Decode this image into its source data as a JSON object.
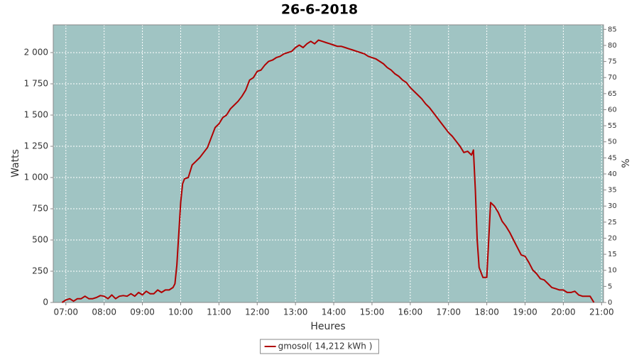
{
  "chart_data": {
    "type": "line",
    "title": "26-6-2018",
    "xlabel": "Heures",
    "ylabel": "Watts",
    "y2label": "%",
    "xlim": [
      6.67,
      21.05
    ],
    "xticks": [
      {
        "value": 7,
        "label": "07:00"
      },
      {
        "value": 8,
        "label": "08:00"
      },
      {
        "value": 9,
        "label": "09:00"
      },
      {
        "value": 10,
        "label": "10:00"
      },
      {
        "value": 11,
        "label": "11:00"
      },
      {
        "value": 12,
        "label": "12:00"
      },
      {
        "value": 13,
        "label": "13:00"
      },
      {
        "value": 14,
        "label": "14:00"
      },
      {
        "value": 15,
        "label": "15:00"
      },
      {
        "value": 16,
        "label": "16:00"
      },
      {
        "value": 17,
        "label": "17:00"
      },
      {
        "value": 18,
        "label": "18:00"
      },
      {
        "value": 19,
        "label": "19:00"
      },
      {
        "value": 20,
        "label": "20:00"
      },
      {
        "value": 21,
        "label": "21:00"
      }
    ],
    "ylim": [
      0,
      2222
    ],
    "yticks": [
      0,
      250,
      500,
      750,
      {
        "value": 1000,
        "label": "1 000"
      },
      {
        "value": 1250,
        "label": "1 250"
      },
      {
        "value": 1500,
        "label": "1 500"
      },
      {
        "value": 1750,
        "label": "1 750"
      },
      {
        "value": 2000,
        "label": "2 000"
      }
    ],
    "y2lim": [
      0,
      86.4
    ],
    "y2ticks": [
      0,
      5,
      10,
      15,
      20,
      25,
      30,
      35,
      40,
      45,
      50,
      55,
      60,
      65,
      70,
      75,
      80,
      85
    ],
    "grid": true,
    "background": "#a0c4c3",
    "legend": "bottom",
    "x": [
      6.9,
      7.0,
      7.1,
      7.2,
      7.3,
      7.4,
      7.5,
      7.6,
      7.7,
      7.8,
      7.9,
      8.0,
      8.1,
      8.2,
      8.3,
      8.4,
      8.5,
      8.6,
      8.7,
      8.8,
      8.9,
      9.0,
      9.1,
      9.2,
      9.3,
      9.4,
      9.5,
      9.6,
      9.7,
      9.8,
      9.85,
      9.9,
      9.95,
      10.0,
      10.05,
      10.1,
      10.2,
      10.3,
      10.4,
      10.5,
      10.6,
      10.7,
      10.8,
      10.9,
      11.0,
      11.1,
      11.2,
      11.3,
      11.4,
      11.5,
      11.6,
      11.7,
      11.8,
      11.9,
      12.0,
      12.1,
      12.2,
      12.3,
      12.4,
      12.5,
      12.6,
      12.7,
      12.8,
      12.9,
      13.0,
      13.1,
      13.2,
      13.3,
      13.4,
      13.5,
      13.6,
      13.7,
      13.8,
      13.9,
      14.0,
      14.1,
      14.2,
      14.3,
      14.4,
      14.5,
      14.6,
      14.7,
      14.8,
      14.9,
      15.0,
      15.1,
      15.2,
      15.3,
      15.4,
      15.5,
      15.6,
      15.7,
      15.8,
      15.9,
      16.0,
      16.1,
      16.2,
      16.3,
      16.4,
      16.5,
      16.6,
      16.7,
      16.8,
      16.9,
      17.0,
      17.1,
      17.2,
      17.3,
      17.4,
      17.5,
      17.6,
      17.65,
      17.7,
      17.75,
      17.8,
      17.9,
      18.0,
      18.05,
      18.1,
      18.2,
      18.3,
      18.4,
      18.5,
      18.6,
      18.7,
      18.8,
      18.9,
      19.0,
      19.1,
      19.2,
      19.3,
      19.4,
      19.5,
      19.6,
      19.7,
      19.8,
      19.9,
      20.0,
      20.1,
      20.2,
      20.3,
      20.4,
      20.5,
      20.6,
      20.7,
      20.8
    ],
    "series": [
      {
        "name": "gmosol( 14,212 kWh )",
        "color": "#b00000",
        "values": [
          0,
          20,
          30,
          10,
          30,
          30,
          50,
          30,
          30,
          40,
          55,
          50,
          30,
          60,
          30,
          50,
          55,
          50,
          70,
          50,
          80,
          60,
          90,
          70,
          70,
          100,
          80,
          100,
          100,
          120,
          150,
          300,
          550,
          800,
          950,
          990,
          1000,
          1100,
          1130,
          1160,
          1200,
          1240,
          1320,
          1400,
          1430,
          1480,
          1500,
          1550,
          1580,
          1610,
          1650,
          1700,
          1780,
          1800,
          1850,
          1860,
          1900,
          1930,
          1940,
          1960,
          1970,
          1990,
          2000,
          2010,
          2040,
          2060,
          2040,
          2070,
          2090,
          2070,
          2100,
          2090,
          2080,
          2070,
          2060,
          2050,
          2050,
          2040,
          2030,
          2020,
          2010,
          2000,
          1990,
          1970,
          1960,
          1950,
          1930,
          1910,
          1880,
          1860,
          1830,
          1810,
          1780,
          1760,
          1720,
          1690,
          1660,
          1630,
          1590,
          1560,
          1520,
          1480,
          1440,
          1400,
          1360,
          1330,
          1290,
          1250,
          1200,
          1210,
          1180,
          1220,
          900,
          500,
          280,
          200,
          200,
          500,
          800,
          770,
          720,
          650,
          610,
          560,
          500,
          440,
          380,
          370,
          320,
          260,
          230,
          190,
          180,
          150,
          120,
          110,
          100,
          100,
          80,
          80,
          90,
          60,
          50,
          50,
          50,
          0
        ]
      }
    ]
  }
}
